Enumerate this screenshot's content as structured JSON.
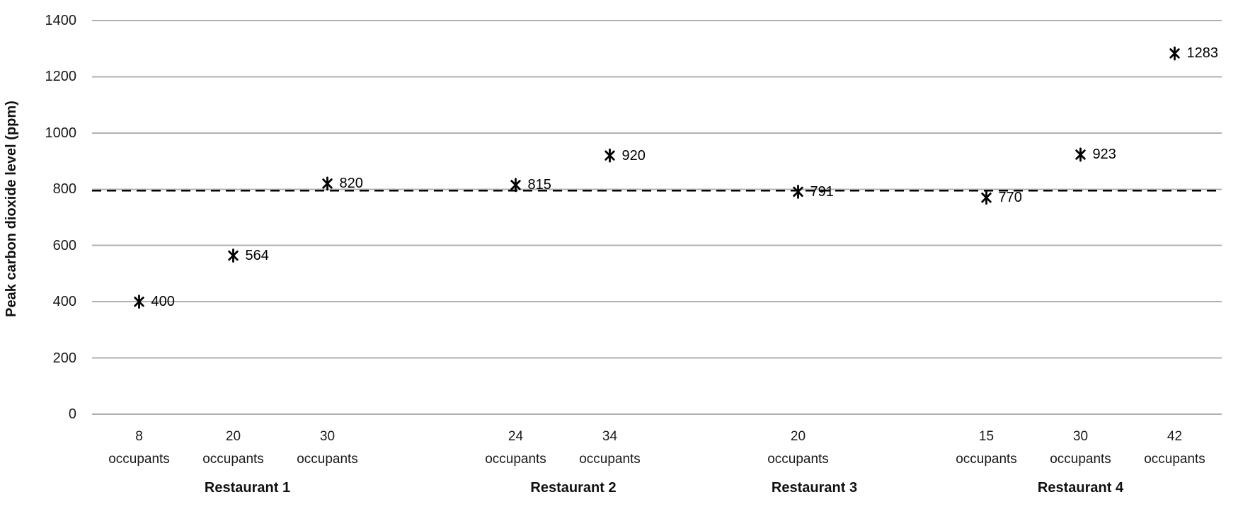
{
  "chart_data": {
    "type": "scatter",
    "title": "",
    "xlabel": "",
    "ylabel": "Peak carbon dioxide level (ppm)",
    "ylim": [
      0,
      1400
    ],
    "yticks": [
      "0",
      "200",
      "400",
      "600",
      "800",
      "1000",
      "1200",
      "1400"
    ],
    "grid": true,
    "legend": false,
    "marker_style": "asterisk",
    "reference_line": {
      "value": 800,
      "style": "dashed",
      "color": "#000000"
    },
    "colors": {
      "marker": "#000000",
      "gridline": "#b0b0b0",
      "tick_text": "#1a1a1a",
      "data_label_text": "#000000"
    },
    "groups": [
      {
        "label": "Restaurant 1",
        "points": [
          {
            "x_label": "8",
            "x_sub": "occupants",
            "value": 400,
            "data_label": "400"
          },
          {
            "x_label": "20",
            "x_sub": "occupants",
            "value": 564,
            "data_label": "564"
          },
          {
            "x_label": "30",
            "x_sub": "occupants",
            "value": 820,
            "data_label": "820"
          }
        ]
      },
      {
        "label": "Restaurant 2",
        "points": [
          {
            "x_label": "24",
            "x_sub": "occupants",
            "value": 815,
            "data_label": "815"
          },
          {
            "x_label": "34",
            "x_sub": "occupants",
            "value": 920,
            "data_label": "920"
          }
        ]
      },
      {
        "label": "Restaurant 3",
        "points": [
          {
            "x_label": "20",
            "x_sub": "occupants",
            "value": 791,
            "data_label": "791"
          }
        ]
      },
      {
        "label": "Restaurant 4",
        "points": [
          {
            "x_label": "15",
            "x_sub": "occupants",
            "value": 770,
            "data_label": "770"
          },
          {
            "x_label": "30",
            "x_sub": "occupants",
            "value": 923,
            "data_label": "923"
          },
          {
            "x_label": "42",
            "x_sub": "occupants",
            "value": 1283,
            "data_label": "1283"
          }
        ]
      }
    ]
  }
}
